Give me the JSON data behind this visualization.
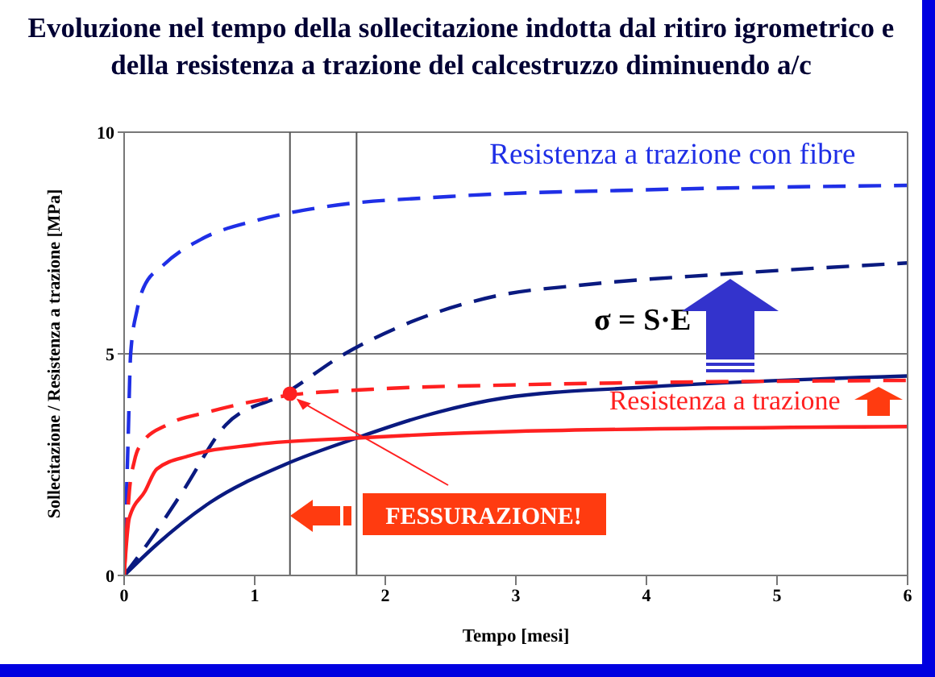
{
  "chart_data": {
    "type": "line",
    "title": "Evoluzione nel tempo della sollecitazione indotta dal ritiro igrometrico e della resistenza a trazione del calcestruzzo diminuendo a/c",
    "xlabel": "Tempo [mesi]",
    "ylabel": "Sollecitazione / Resistenza a trazione  [MPa]",
    "xlim": [
      0,
      6
    ],
    "xticks": [
      0,
      1,
      2,
      3,
      4,
      5,
      6
    ],
    "ylim": [
      0,
      10
    ],
    "yticks": [
      0,
      5,
      10
    ],
    "grid": "y",
    "ref_lines": [
      {
        "axis": "x",
        "value": 1.27,
        "color": "#555555"
      },
      {
        "axis": "x",
        "value": 1.78,
        "color": "#555555"
      }
    ],
    "annotations": [
      "σ = S·E",
      {
        "text": "FESSURAZIONE!",
        "x": 1.27,
        "y": 4.1
      }
    ],
    "series": [
      {
        "name": "Resistenza a trazione con fibre",
        "color": "#1f2fe6",
        "line_style": "dashed",
        "x": [
          0,
          0.03,
          0.05,
          0.1,
          0.15,
          0.3,
          0.6,
          1,
          1.5,
          2.5,
          4,
          6
        ],
        "values": [
          0,
          3,
          5,
          6,
          6.5,
          7,
          7.6,
          8,
          8.3,
          8.55,
          8.7,
          8.8
        ]
      },
      {
        "color": "#0a1a80",
        "line_style": "dashed",
        "x": [
          0,
          0.2,
          0.45,
          0.78,
          1.23,
          1.69,
          2.1,
          2.84,
          3.5,
          4.6,
          6
        ],
        "values": [
          0,
          0.8,
          1.9,
          3.4,
          4.1,
          5,
          5.6,
          6.3,
          6.55,
          6.8,
          7.05
        ]
      },
      {
        "color": "#0a1a80",
        "line_style": "solid",
        "x": [
          0,
          0.25,
          0.66,
          1.23,
          1.78,
          2.3,
          2.9,
          4,
          6
        ],
        "values": [
          0,
          0.7,
          1.65,
          2.5,
          3.1,
          3.6,
          4.0,
          4.25,
          4.5
        ]
      },
      {
        "color": "#ff2020",
        "line_style": "dashed",
        "x": [
          0,
          0.04,
          0.08,
          0.14,
          0.33,
          0.66,
          1.23,
          1.9,
          3,
          6
        ],
        "values": [
          0,
          1.9,
          2.6,
          3.0,
          3.4,
          3.7,
          4.05,
          4.2,
          4.3,
          4.4
        ]
      },
      {
        "name": "Resistenza a trazione",
        "color": "#ff2020",
        "line_style": "solid",
        "x": [
          0,
          0.04,
          0.16,
          0.25,
          0.5,
          1,
          1.78,
          3,
          6
        ],
        "values": [
          0,
          1.3,
          1.9,
          2.4,
          2.7,
          2.95,
          3.1,
          3.25,
          3.36
        ]
      },
      {
        "type": "scatter",
        "marker": "circle",
        "color": "#ff2020",
        "x": [
          1.27
        ],
        "values": [
          4.1
        ]
      }
    ]
  }
}
